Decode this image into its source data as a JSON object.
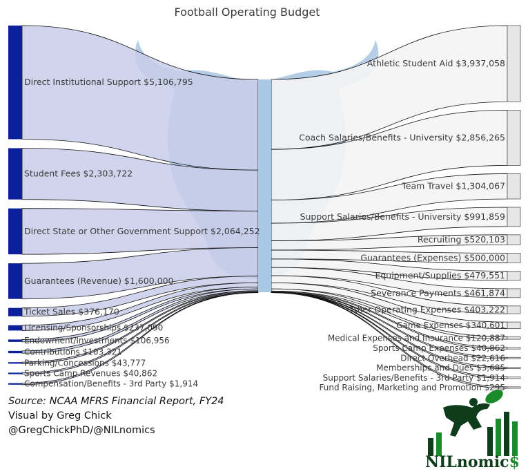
{
  "title": "Football Operating Budget",
  "credits": {
    "source": "Source: NCAA MFRS Financial Report, FY24",
    "visual_by": "Visual by Greg Chick",
    "handles": "@GregChickPhD/@NILnomics"
  },
  "brand": {
    "text": "NILnomics",
    "text_main": "NILnomic",
    "text_dollar": "$",
    "colors": {
      "dark": "#0f3d1c",
      "green": "#1a8a2a"
    }
  },
  "colors": {
    "source_node": "#0a1f9a",
    "source_link": "#c8cde9",
    "hub_node": "#a9c8e4",
    "target_node": "#e6e6e6",
    "target_link": "#f4f4f4",
    "watermark": "#7aa7d4"
  },
  "chart_data": {
    "type": "sankey",
    "title": "Football Operating Budget",
    "unit": "USD",
    "sources": [
      {
        "name": "Direct Institutional Support",
        "value": 5106795,
        "label": "Direct Institutional Support $5,106,795"
      },
      {
        "name": "Student Fees",
        "value": 2303722,
        "label": "Student Fees $2,303,722"
      },
      {
        "name": "Direct State or Other Government Support",
        "value": 2064252,
        "label": "Direct State or Other Government Support $2,064,252"
      },
      {
        "name": "Guarantees (Revenue)",
        "value": 1600000,
        "label": "Guarantees (Revenue) $1,600,000"
      },
      {
        "name": "Ticket Sales",
        "value": 376170,
        "label": "Ticket Sales $376,170"
      },
      {
        "name": "Licensing/Sponsorships",
        "value": 237090,
        "label": "Licensing/Sponsorships $237,090"
      },
      {
        "name": "Endowment/Investments",
        "value": 106956,
        "label": "Endowment/Investments $106,956"
      },
      {
        "name": "Contributions",
        "value": 103321,
        "label": "Contributions $103,321"
      },
      {
        "name": "Parking/Concessions",
        "value": 43777,
        "label": "Parking/Concessions $43,777"
      },
      {
        "name": "Sports Camp Revenues",
        "value": 40862,
        "label": "Sports Camp Revenues $40,862"
      },
      {
        "name": "Compensation/Benefits - 3rd Party",
        "value": 1914,
        "label": "Compensation/Benefits - 3rd Party $1,914"
      }
    ],
    "targets": [
      {
        "name": "Athletic Student Aid",
        "value": 3937058,
        "label": "Athletic Student Aid $3,937,058"
      },
      {
        "name": "Coach Salaries/Benefits - University",
        "value": 2856265,
        "label": "Coach Salaries/Benefits - University $2,856,265"
      },
      {
        "name": "Team Travel",
        "value": 1304067,
        "label": "Team Travel $1,304,067"
      },
      {
        "name": "Support Salaries/Benefits - University",
        "value": 991859,
        "label": "Support Salaries/Benefits - University $991,859"
      },
      {
        "name": "Recruiting",
        "value": 520103,
        "label": "Recruiting $520,103"
      },
      {
        "name": "Guarantees (Expenses)",
        "value": 500000,
        "label": "Guarantees (Expenses) $500,000"
      },
      {
        "name": "Equipment/Supplies",
        "value": 479551,
        "label": "Equipment/Supplies $479,551"
      },
      {
        "name": "Severance Payments",
        "value": 461874,
        "label": "Severance Payments $461,874"
      },
      {
        "name": "Other Operating Expenses",
        "value": 403222,
        "label": "Other Operating Expenses $403,222"
      },
      {
        "name": "Game Expenses",
        "value": 340601,
        "label": "Game Expenses $340,601"
      },
      {
        "name": "Medical Expenses and Insurance",
        "value": 120887,
        "label": "Medical Expenses and Insurance $120,887"
      },
      {
        "name": "Sports Camp Expenses",
        "value": 40862,
        "label": "Sports Camp Expenses $40,862"
      },
      {
        "name": "Direct Overhead",
        "value": 22616,
        "label": "Direct Overhead $22,616"
      },
      {
        "name": "Memberships and Dues",
        "value": 3685,
        "label": "Memberships and Dues $3,685"
      },
      {
        "name": "Support Salaries/Benefits - 3rd Party",
        "value": 1914,
        "label": "Support Salaries/Benefits - 3rd Party $1,914"
      },
      {
        "name": "Fund Raising, Marketing and Promotion",
        "value": 295,
        "label": "Fund Raising, Marketing and Promotion $295"
      }
    ]
  }
}
